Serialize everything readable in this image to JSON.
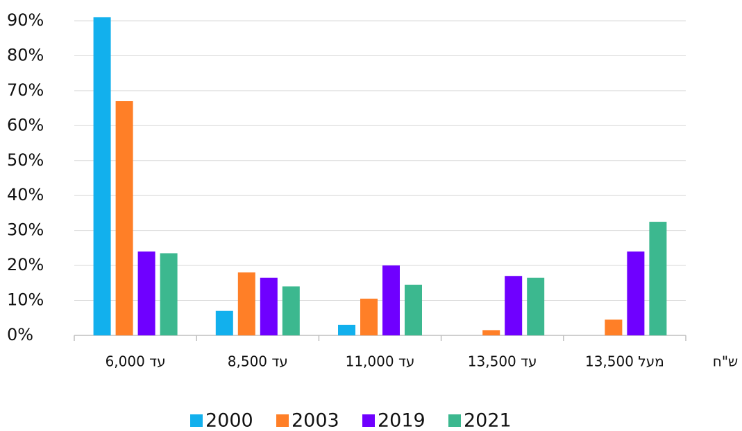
{
  "chart_data": {
    "type": "bar",
    "x_label": "ש\"ח",
    "categories": [
      "עד 6,000",
      "עד 8,500",
      "עד 11,000",
      "עד 13,500",
      "מעל 13,500"
    ],
    "series": [
      {
        "name": "2000",
        "color": "#12b0ed",
        "values": [
          91,
          7,
          3,
          0,
          0
        ]
      },
      {
        "name": "2003",
        "color": "#ff7f27",
        "values": [
          67,
          18,
          10.5,
          1.5,
          4.5
        ]
      },
      {
        "name": "2019",
        "color": "#6f00ff",
        "values": [
          24,
          16.5,
          20,
          17,
          24
        ]
      },
      {
        "name": "2021",
        "color": "#3cb88f",
        "values": [
          23.5,
          14,
          14.5,
          16.5,
          32.5
        ]
      }
    ],
    "ylim": [
      0,
      90
    ],
    "yticks": [
      {
        "value": 0,
        "label": "0%"
      },
      {
        "value": 10,
        "label": "10%"
      },
      {
        "value": 20,
        "label": "20%"
      },
      {
        "value": 30,
        "label": "30%"
      },
      {
        "value": 40,
        "label": "40%"
      },
      {
        "value": 50,
        "label": "50%"
      },
      {
        "value": 60,
        "label": "60%"
      },
      {
        "value": 70,
        "label": "70%"
      },
      {
        "value": 80,
        "label": "80%"
      },
      {
        "value": 90,
        "label": "90%"
      }
    ],
    "grid": true,
    "legend": "bottom"
  }
}
